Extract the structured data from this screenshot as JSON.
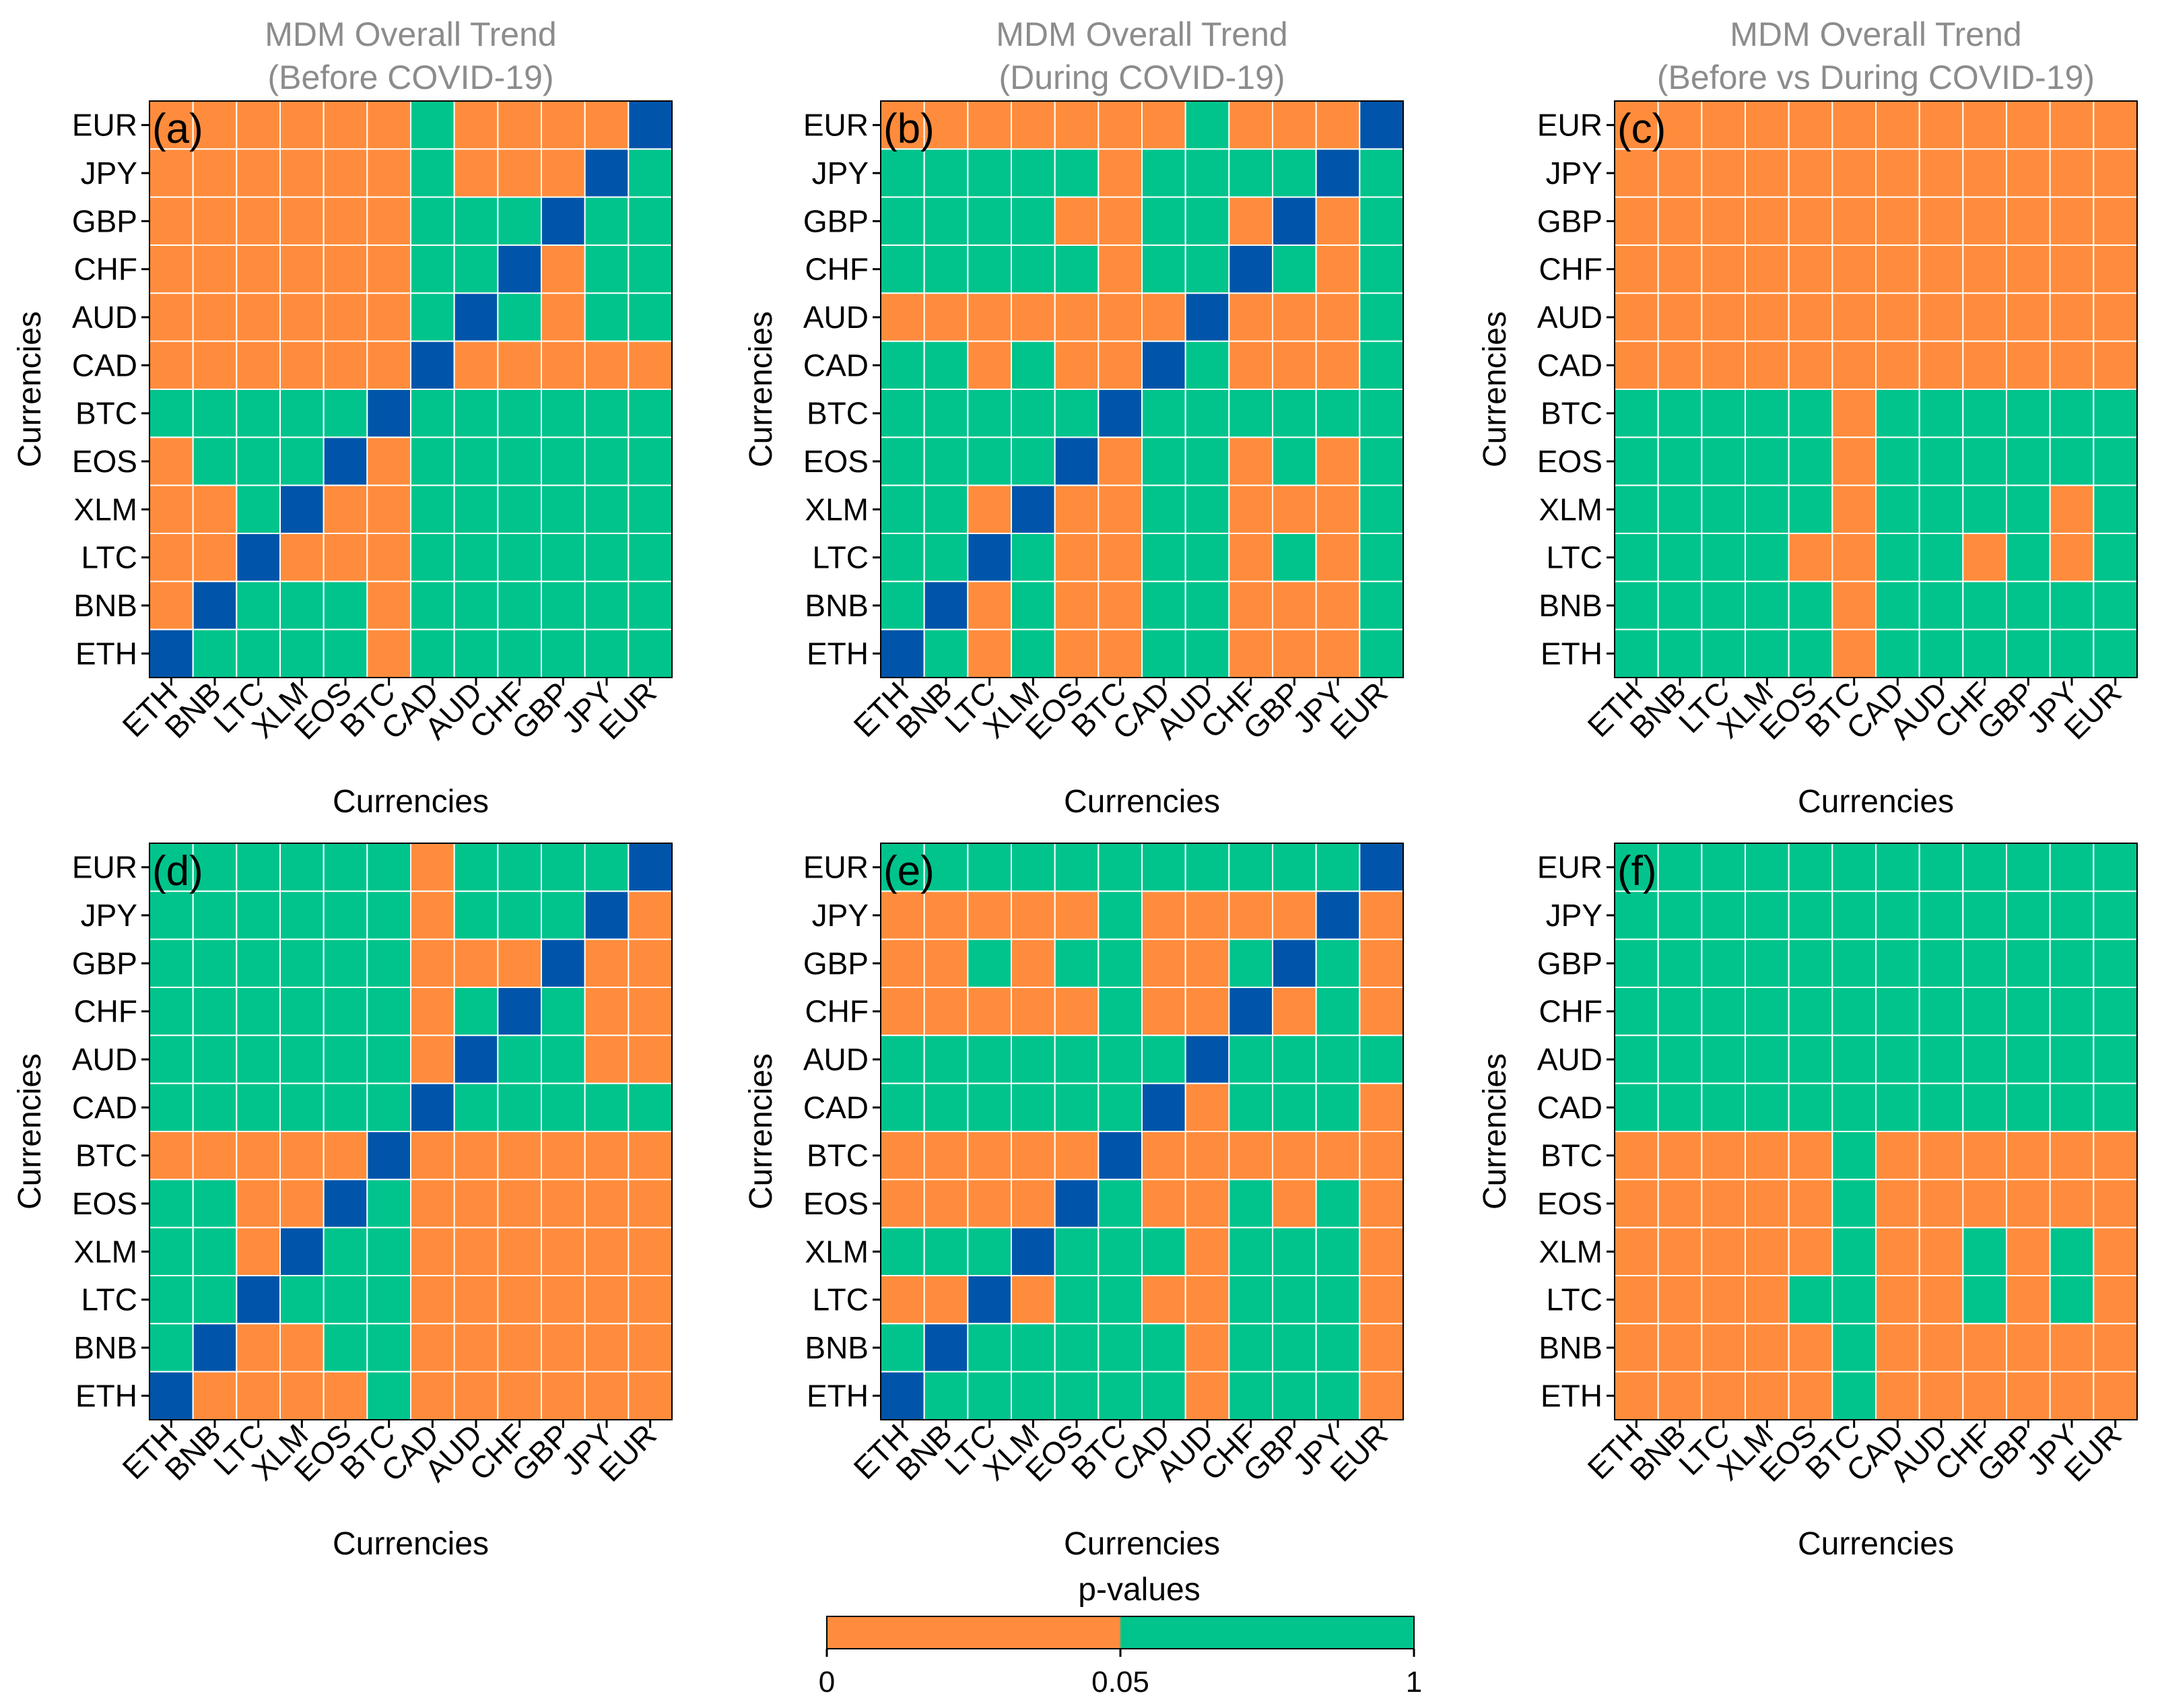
{
  "colors": {
    "low": "#FF8C3C",
    "high": "#00C48C",
    "diag": "#0055AA",
    "grid": "#ffffff",
    "title": "#8c8c8c"
  },
  "legend": {
    "title": "p-values",
    "ticks": [
      "0",
      "0.05",
      "1"
    ],
    "breaks": [
      0,
      0.05,
      1
    ]
  },
  "chart_data": [
    {
      "type": "heatmap",
      "label": "(a)",
      "title": [
        "MDM Overall Trend",
        "(Before COVID-19)"
      ],
      "xlabel": "Currencies",
      "ylabel": "Currencies",
      "x": [
        "ETH",
        "BNB",
        "LTC",
        "XLM",
        "EOS",
        "BTC",
        "CAD",
        "AUD",
        "CHF",
        "GBP",
        "JPY",
        "EUR"
      ],
      "y_top_to_bottom": [
        "EUR",
        "JPY",
        "GBP",
        "CHF",
        "AUD",
        "CAD",
        "BTC",
        "EOS",
        "XLM",
        "LTC",
        "BNB",
        "ETH"
      ],
      "legend": "L = p < 0.05, H = p >= 0.05, D = diagonal",
      "cells": [
        "LLLLLLHLLLLD",
        "LLLLLLHLLLDH",
        "LLLLLLHHHDHH",
        "LLLLLLHHDLHH",
        "LLLLLLHDHLHH",
        "LLLLLLDLLLLL",
        "HHHHHDHHHHHH",
        "LHHHDLHHHHHH",
        "LLHDLLHHHHHH",
        "LLDLLLHHHHHH",
        "LDHHHLHHHHHH",
        "DHHHHLHHHHHH"
      ]
    },
    {
      "type": "heatmap",
      "label": "(b)",
      "title": [
        "MDM Overall Trend",
        "(During COVID-19)"
      ],
      "xlabel": "Currencies",
      "ylabel": "Currencies",
      "x": [
        "ETH",
        "BNB",
        "LTC",
        "XLM",
        "EOS",
        "BTC",
        "CAD",
        "AUD",
        "CHF",
        "GBP",
        "JPY",
        "EUR"
      ],
      "y_top_to_bottom": [
        "EUR",
        "JPY",
        "GBP",
        "CHF",
        "AUD",
        "CAD",
        "BTC",
        "EOS",
        "XLM",
        "LTC",
        "BNB",
        "ETH"
      ],
      "legend": "L = p < 0.05, H = p >= 0.05, D = diagonal",
      "cells": [
        "LLLLLLLHLLLD",
        "HHHHHLHHHHDH",
        "HHHHLLHHLDLH",
        "HHHHHLHHDHLH",
        "LLLLLLLDLLLH",
        "HHLHLLDHLLLH",
        "HHHHHDHHHHHH",
        "HHHHDLHHLHLH",
        "HHLDLLHHLLLH",
        "HHDHLLHHLHLH",
        "HDLHLLHHLLLH",
        "DHLHLLHHLLLH"
      ]
    },
    {
      "type": "heatmap",
      "label": "(c)",
      "title": [
        "MDM Overall Trend",
        "(Before vs During COVID-19)"
      ],
      "xlabel": "Currencies",
      "ylabel": "Currencies",
      "x": [
        "ETH",
        "BNB",
        "LTC",
        "XLM",
        "EOS",
        "BTC",
        "CAD",
        "AUD",
        "CHF",
        "GBP",
        "JPY",
        "EUR"
      ],
      "y_top_to_bottom": [
        "EUR",
        "JPY",
        "GBP",
        "CHF",
        "AUD",
        "CAD",
        "BTC",
        "EOS",
        "XLM",
        "LTC",
        "BNB",
        "ETH"
      ],
      "legend": "L = p < 0.05, H = p >= 0.05, D = diagonal",
      "cells": [
        "LLLLLLLLLLLL",
        "LLLLLLLLLLLL",
        "LLLLLLLLLLLL",
        "LLLLLLLLLLLL",
        "LLLLLLLLLLLL",
        "LLLLLLLLLLLL",
        "HHHHHLHHHHHH",
        "HHHHHLHHHHHH",
        "HHHHHLHHHHLH",
        "HHHHLLHHLHLH",
        "HHHHHLHHHHHH",
        "HHHHHLHHHHHH"
      ]
    },
    {
      "type": "heatmap",
      "label": "(d)",
      "title": [],
      "xlabel": "Currencies",
      "ylabel": "Currencies",
      "x": [
        "ETH",
        "BNB",
        "LTC",
        "XLM",
        "EOS",
        "BTC",
        "CAD",
        "AUD",
        "CHF",
        "GBP",
        "JPY",
        "EUR"
      ],
      "y_top_to_bottom": [
        "EUR",
        "JPY",
        "GBP",
        "CHF",
        "AUD",
        "CAD",
        "BTC",
        "EOS",
        "XLM",
        "LTC",
        "BNB",
        "ETH"
      ],
      "legend": "L = p < 0.05, H = p >= 0.05, D = diagonal",
      "cells": [
        "HHHHHHLHHHHD",
        "HHHHHHLHHHDL",
        "HHHHHHLLLDLL",
        "HHHHHHLHDHLL",
        "HHHHHHLDHHLL",
        "HHHHHHDHHHHH",
        "LLLLLDLLLLLL",
        "HHLLDHLLLLLL",
        "HHLDHHLLLLLL",
        "HHDHHHLLLLLL",
        "HDLLHHLLLLLL",
        "DLLLLHLLLLLL"
      ]
    },
    {
      "type": "heatmap",
      "label": "(e)",
      "title": [],
      "xlabel": "Currencies",
      "ylabel": "Currencies",
      "x": [
        "ETH",
        "BNB",
        "LTC",
        "XLM",
        "EOS",
        "BTC",
        "CAD",
        "AUD",
        "CHF",
        "GBP",
        "JPY",
        "EUR"
      ],
      "y_top_to_bottom": [
        "EUR",
        "JPY",
        "GBP",
        "CHF",
        "AUD",
        "CAD",
        "BTC",
        "EOS",
        "XLM",
        "LTC",
        "BNB",
        "ETH"
      ],
      "legend": "L = p < 0.05, H = p >= 0.05, D = diagonal",
      "cells": [
        "HHHHHHHHHHHD",
        "LLLLLHLLLLDL",
        "LLHLHHLLHDHL",
        "LLLLLHLLDLHL",
        "HHHHHHHDHHHH",
        "HHHHHHDLHHHL",
        "LLLLLDLLLLLL",
        "LLLLDHLLHLHL",
        "HHHDHHHLHHHL",
        "LLDLHHLLHHHL",
        "HDHHHHHLHHHL",
        "DHHHHHHLHHHL"
      ]
    },
    {
      "type": "heatmap",
      "label": "(f)",
      "title": [],
      "xlabel": "Currencies",
      "ylabel": "Currencies",
      "x": [
        "ETH",
        "BNB",
        "LTC",
        "XLM",
        "EOS",
        "BTC",
        "CAD",
        "AUD",
        "CHF",
        "GBP",
        "JPY",
        "EUR"
      ],
      "y_top_to_bottom": [
        "EUR",
        "JPY",
        "GBP",
        "CHF",
        "AUD",
        "CAD",
        "BTC",
        "EOS",
        "XLM",
        "LTC",
        "BNB",
        "ETH"
      ],
      "legend": "L = p < 0.05, H = p >= 0.05, D = diagonal",
      "cells": [
        "HHHHHHHHHHHH",
        "HHHHHHHHHHHH",
        "HHHHHHHHHHHH",
        "HHHHHHHHHHHH",
        "HHHHHHHHHHHH",
        "HHHHHHHHHHHH",
        "LLLLLHLLLLLL",
        "LLLLLHLLLLLL",
        "LLLLLHLLHLHL",
        "LLLLHHLLHLHL",
        "LLLLLHLLLLLL",
        "LLLLLHLLLLLL"
      ]
    }
  ]
}
